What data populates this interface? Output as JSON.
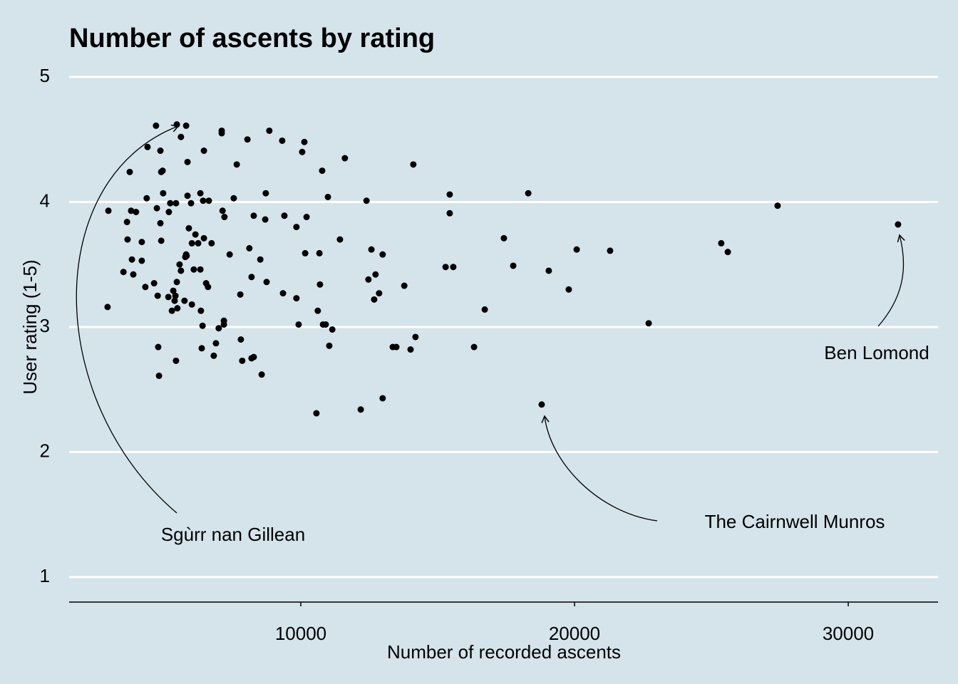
{
  "chart_data": {
    "type": "scatter",
    "title": "Number of ascents by rating",
    "x_label": "Number of recorded ascents",
    "y_label": "User rating (1-5)",
    "color": "#000000",
    "x": [
      2970,
      2940,
      3750,
      3800,
      3980,
      3650,
      3670,
      3830,
      3880,
      3520,
      4190,
      4190,
      4320,
      4400,
      4370,
      4710,
      4870,
      4900,
      4950,
      4740,
      4870,
      4900,
      4640,
      4770,
      4790,
      4820,
      4970,
      5160,
      5180,
      5230,
      5290,
      5340,
      5390,
      5420,
      5440,
      5470,
      5440,
      5470,
      5620,
      5490,
      5570,
      5620,
      5780,
      5830,
      5810,
      5750,
      5810,
      5860,
      5860,
      5910,
      5990,
      6020,
      6020,
      6090,
      6150,
      6250,
      6330,
      6430,
      6330,
      6350,
      6410,
      6380,
      6460,
      6460,
      6540,
      6610,
      6640,
      6740,
      6820,
      6900,
      7000,
      7110,
      7110,
      7140,
      7210,
      7190,
      7190,
      7400,
      7550,
      7660,
      7790,
      7810,
      7860,
      8050,
      8120,
      8200,
      8280,
      8280,
      8200,
      8520,
      8570,
      8720,
      8750,
      8700,
      8850,
      9320,
      9400,
      9350,
      9840,
      9840,
      9920,
      10050,
      10130,
      10160,
      10210,
      10620,
      10680,
      10700,
      10780,
      10810,
      10910,
      10990,
      11040,
      11150,
      10570,
      11610,
      11430,
      12190,
      12400,
      12470,
      12580,
      12680,
      12730,
      12860,
      12990,
      12990,
      13360,
      13490,
      13780,
      14010,
      14110,
      14190,
      15290,
      15440,
      15440,
      15570,
      16330,
      16720,
      17420,
      17760,
      18310,
      18800,
      19060,
      19790,
      20080,
      21300,
      22710,
      25360,
      25600,
      27420,
      31820
    ],
    "values": [
      3.93,
      3.16,
      4.24,
      3.93,
      3.92,
      3.84,
      3.7,
      3.54,
      3.42,
      3.44,
      3.53,
      3.68,
      3.32,
      4.44,
      4.03,
      4.61,
      4.41,
      4.24,
      4.25,
      3.95,
      3.83,
      3.69,
      3.35,
      3.25,
      2.84,
      2.61,
      4.07,
      3.24,
      3.92,
      3.99,
      3.13,
      3.29,
      3.21,
      3.25,
      3.99,
      3.36,
      2.73,
      4.62,
      4.52,
      3.15,
      3.5,
      3.45,
      3.56,
      3.57,
      3.58,
      3.21,
      4.61,
      4.32,
      4.05,
      3.79,
      3.99,
      3.67,
      3.18,
      3.46,
      3.74,
      3.67,
      4.07,
      4.01,
      3.46,
      3.13,
      3.01,
      2.83,
      4.41,
      3.71,
      3.35,
      3.32,
      4.01,
      3.67,
      2.77,
      2.87,
      2.99,
      4.57,
      4.55,
      3.93,
      3.88,
      3.05,
      3.02,
      3.58,
      4.03,
      4.3,
      3.26,
      2.9,
      2.73,
      4.5,
      3.63,
      3.4,
      3.89,
      2.76,
      2.75,
      3.54,
      2.62,
      4.07,
      3.36,
      3.86,
      4.57,
      4.49,
      3.89,
      3.27,
      3.8,
      3.23,
      3.02,
      4.4,
      4.48,
      3.59,
      3.88,
      3.13,
      3.59,
      3.34,
      4.25,
      3.02,
      3.02,
      4.04,
      2.85,
      2.98,
      2.31,
      4.35,
      3.7,
      2.34,
      4.01,
      3.38,
      3.62,
      3.22,
      3.42,
      3.27,
      3.58,
      2.43,
      2.84,
      2.84,
      3.33,
      2.82,
      4.3,
      2.92,
      3.48,
      4.06,
      3.91,
      3.48,
      2.84,
      3.14,
      3.71,
      3.49,
      4.07,
      2.38,
      3.45,
      3.3,
      3.62,
      3.61,
      3.03,
      3.67,
      3.6,
      3.97,
      3.82
    ],
    "xlim": [
      1536,
      33281
    ],
    "xticks": [
      10000,
      20000,
      30000
    ],
    "ylim": [
      0.8,
      5
    ],
    "yticks": [
      1,
      2,
      3,
      4,
      5
    ],
    "grid": true,
    "annotations": [
      {
        "text": "Sgùrr nan Gillean"
      },
      {
        "text": "The Cairnwell Munros"
      },
      {
        "text": "Ben Lomond"
      }
    ]
  }
}
